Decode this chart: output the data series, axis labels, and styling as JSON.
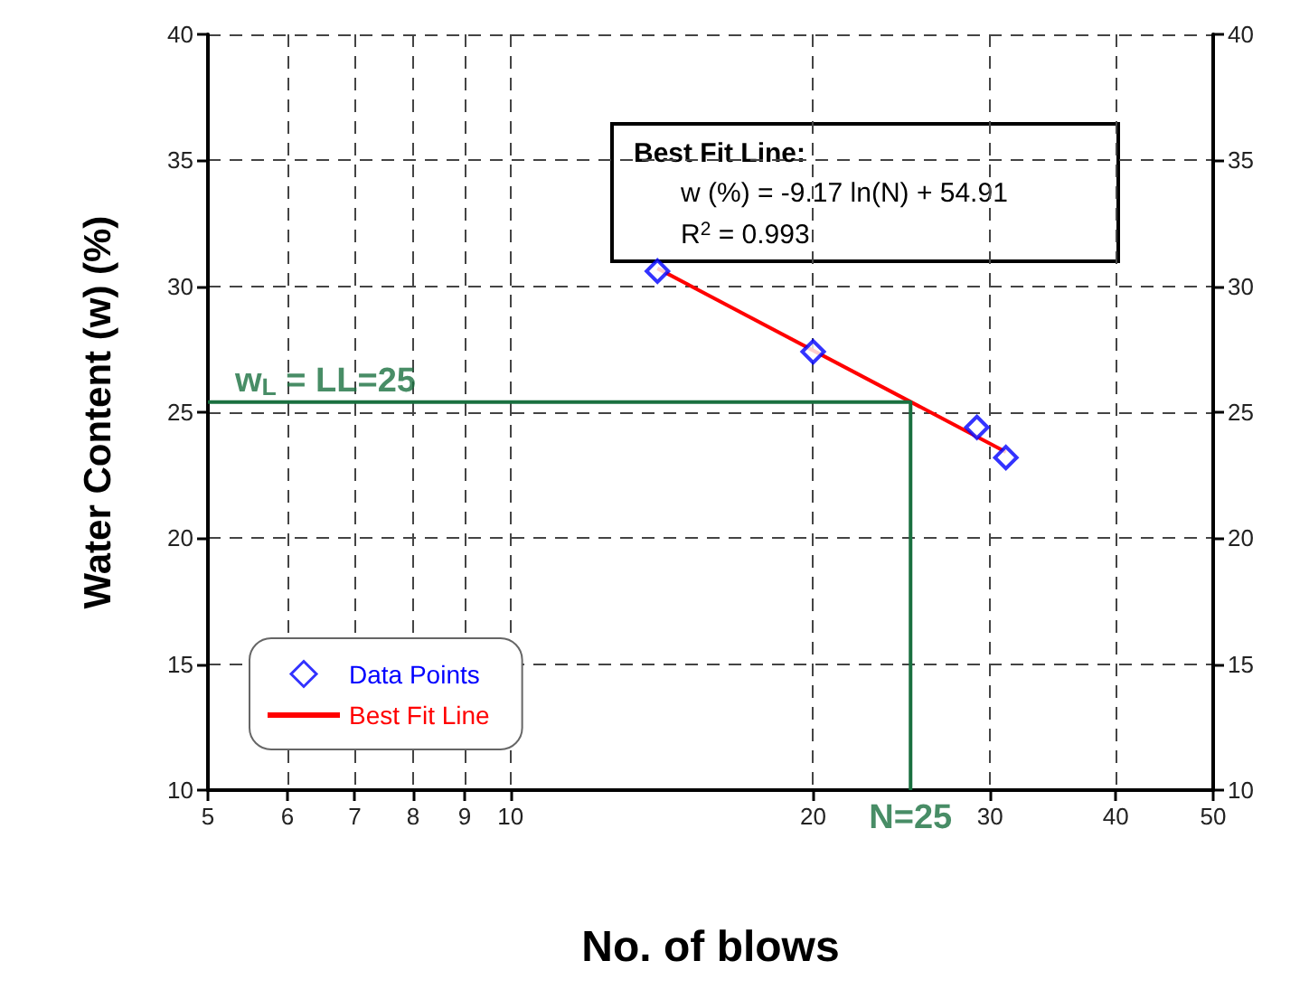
{
  "chart_data": {
    "type": "scatter",
    "xlabel": "No. of blows",
    "ylabel": "Water Content (w) (%)",
    "log": "x",
    "xlim": [
      5,
      50
    ],
    "xticks": [
      5,
      6,
      7,
      8,
      9,
      10,
      20,
      30,
      40,
      50
    ],
    "ylim": [
      10,
      40
    ],
    "yticks": [
      10,
      15,
      20,
      25,
      30,
      35,
      40
    ],
    "y2lim": [
      10,
      40
    ],
    "y2ticks": [
      10,
      15,
      20,
      25,
      30,
      35,
      40
    ],
    "grid": true,
    "legend": "bottom left",
    "marker": "diamond",
    "series": [
      {
        "name": "Data Points",
        "color": "#0000ff",
        "x": [
          14,
          20,
          29.1,
          31.1
        ],
        "values": [
          30.6,
          27.4,
          24.4,
          23.2
        ]
      },
      {
        "name": "Best Fit Line",
        "type": "line",
        "color": "#ff0000",
        "marker": "none",
        "x": [
          14,
          31.1
        ],
        "values": [
          30.71,
          23.42
        ]
      },
      {
        "type": "line",
        "color": "#1a7040",
        "marker": "none",
        "x": [
          5,
          25,
          25
        ],
        "values": [
          25.4,
          25.4,
          10
        ]
      }
    ],
    "annotations": [
      "Best Fit Line:",
      "w (%) = -9.17 ln(N) + 54.91",
      "R$^{2}$ = 0.993",
      {
        "text": "w$_{L}$ = LL=25",
        "x": 5.5,
        "y": 25.4
      },
      {
        "text": "N=25",
        "x": 25,
        "y": 10
      }
    ]
  }
}
